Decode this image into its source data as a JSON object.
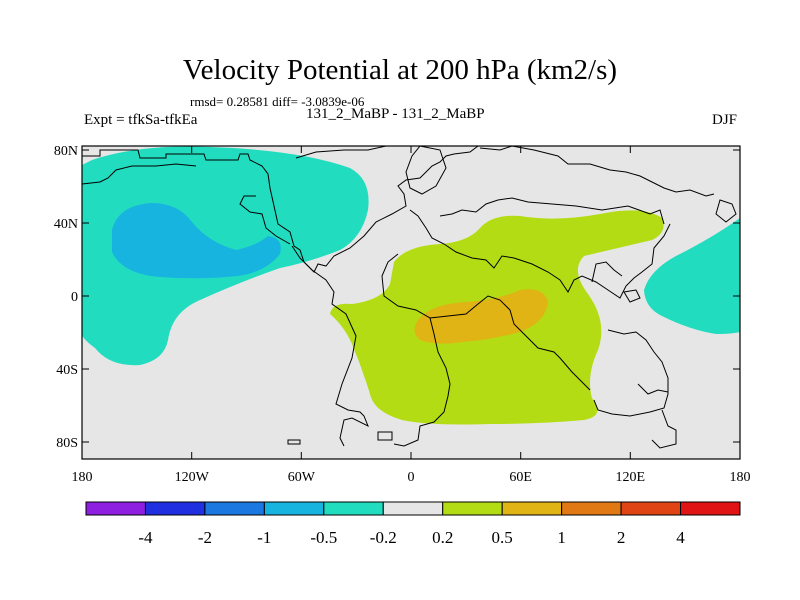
{
  "title": "Velocity Potential at 200 hPa (km2/s)",
  "stats": "rmsd= 0.28581 diff= -3.0839e-06",
  "left_label": "Expt = tfkSa-tfkEa",
  "center_label": "131_2_MaBP - 131_2_MaBP",
  "right_label": "DJF",
  "lat_ticks": [
    "80N",
    "40N",
    "0",
    "40S",
    "80S"
  ],
  "lon_ticks": [
    "180",
    "120W",
    "60W",
    "0",
    "60E",
    "120E",
    "180"
  ],
  "colorbar": {
    "labels": [
      "-4",
      "-2",
      "-1",
      "-0.5",
      "-0.2",
      "0.2",
      "0.5",
      "1",
      "2",
      "4"
    ],
    "colors": [
      "#8e1ee0",
      "#2030e0",
      "#1a78e0",
      "#17b4e0",
      "#22dcc0",
      "#e6e6e6",
      "#b4dc14",
      "#e0b414",
      "#e07814",
      "#e04414",
      "#e01414"
    ]
  },
  "colors": {
    "background": "#e6e6e6",
    "neg_weak": "#22dcc0",
    "neg_moderate": "#17b4e0",
    "pos_weak": "#b4dc14",
    "pos_moderate": "#e0b414"
  },
  "regions": [
    {
      "name": "north-pacific-negative",
      "level": "-0.5 to -0.2"
    },
    {
      "name": "north-pacific-core",
      "level": "-1 to -0.5"
    },
    {
      "name": "africa-indian-positive",
      "level": "0.2 to 0.5"
    },
    {
      "name": "africa-core",
      "level": "0.5 to 1"
    },
    {
      "name": "west-pacific-negative",
      "level": "-0.5 to -0.2"
    }
  ]
}
